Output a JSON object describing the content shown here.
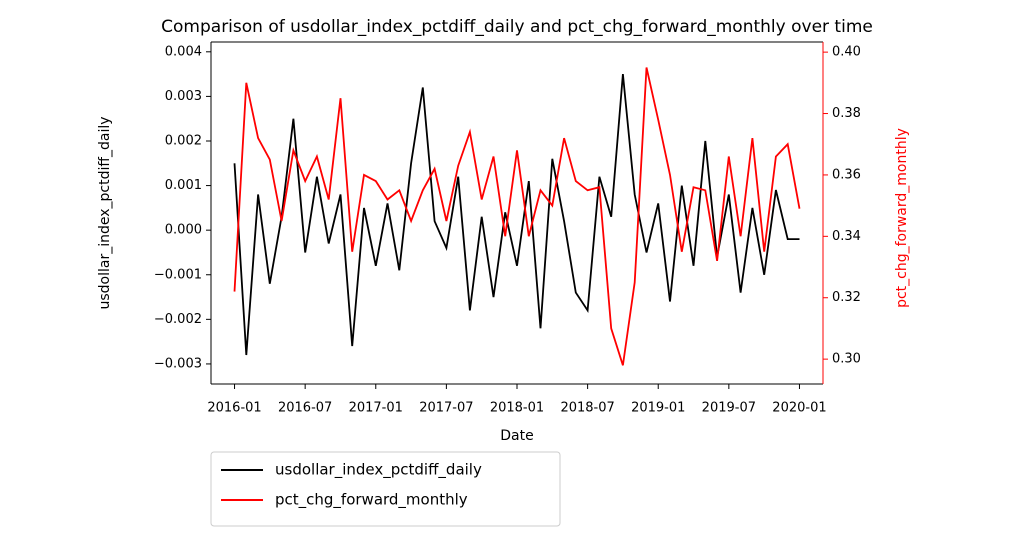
{
  "chart_data": {
    "type": "line",
    "title": "Comparison of usdollar_index_pctdiff_daily and pct_chg_forward_monthly over time",
    "xlabel": "Date",
    "ylabel": "usdollar_index_pctdiff_daily",
    "y2label": "pct_chg_forward_monthly",
    "x": [
      "2016-01",
      "2016-02",
      "2016-03",
      "2016-04",
      "2016-05",
      "2016-06",
      "2016-07",
      "2016-08",
      "2016-09",
      "2016-10",
      "2016-11",
      "2016-12",
      "2017-01",
      "2017-02",
      "2017-03",
      "2017-04",
      "2017-05",
      "2017-06",
      "2017-07",
      "2017-08",
      "2017-09",
      "2017-10",
      "2017-11",
      "2017-12",
      "2018-01",
      "2018-02",
      "2018-03",
      "2018-04",
      "2018-05",
      "2018-06",
      "2018-07",
      "2018-08",
      "2018-09",
      "2018-10",
      "2018-11",
      "2018-12",
      "2019-01",
      "2019-02",
      "2019-03",
      "2019-04",
      "2019-05",
      "2019-06",
      "2019-07",
      "2019-08",
      "2019-09",
      "2019-10",
      "2019-11",
      "2019-12",
      "2020-01"
    ],
    "series": [
      {
        "name": "usdollar_index_pctdiff_daily",
        "color": "#000000",
        "values": [
          0.0015,
          -0.0028,
          0.0008,
          -0.0012,
          0.0003,
          0.0025,
          -0.0005,
          0.0012,
          -0.0003,
          0.0008,
          -0.0026,
          0.0005,
          -0.0008,
          0.0006,
          -0.0009,
          0.0015,
          0.0032,
          0.0002,
          -0.0004,
          0.0012,
          -0.0018,
          0.0003,
          -0.0015,
          0.0004,
          -0.0008,
          0.0011,
          -0.0022,
          0.0016,
          0.0002,
          -0.0014,
          -0.0018,
          0.0012,
          0.0003,
          0.0035,
          0.0008,
          -0.0005,
          0.0006,
          -0.0016,
          0.001,
          -0.0008,
          0.002,
          -0.0006,
          0.0008,
          -0.0014,
          0.0005,
          -0.001,
          0.0009,
          -0.0002,
          -0.0002
        ]
      },
      {
        "name": "pct_chg_forward_monthly",
        "color": "#ff0000",
        "axis": "y2",
        "values": [
          0.322,
          0.39,
          0.372,
          0.365,
          0.345,
          0.368,
          0.358,
          0.366,
          0.352,
          0.385,
          0.335,
          0.36,
          0.358,
          0.352,
          0.355,
          0.345,
          0.355,
          0.362,
          0.345,
          0.363,
          0.374,
          0.352,
          0.366,
          0.34,
          0.368,
          0.34,
          0.355,
          0.35,
          0.372,
          0.358,
          0.355,
          0.356,
          0.31,
          0.298,
          0.325,
          0.395,
          0.378,
          0.36,
          0.335,
          0.356,
          0.355,
          0.332,
          0.366,
          0.34,
          0.372,
          0.335,
          0.366,
          0.37,
          0.349
        ]
      }
    ],
    "xlim": [
      "2015-11",
      "2020-03"
    ],
    "xticks": [
      "2016-01",
      "2016-07",
      "2017-01",
      "2017-07",
      "2018-01",
      "2018-07",
      "2019-01",
      "2019-07",
      "2020-01"
    ],
    "ylim": [
      -0.00345,
      0.00422
    ],
    "yticks": [
      {
        "value": -0.003,
        "label": "−0.003"
      },
      {
        "value": -0.002,
        "label": "−0.002"
      },
      {
        "value": -0.001,
        "label": "−0.001"
      },
      {
        "value": 0,
        "label": "0.000"
      },
      0.001,
      0.002,
      0.003,
      0.004
    ],
    "y2lim": [
      0.2919,
      0.4033
    ],
    "y2ticks": [
      {
        "value": 0.3,
        "label": "0.30"
      },
      0.32,
      0.34,
      0.36,
      0.38,
      {
        "value": 0.4,
        "label": "0.40"
      }
    ],
    "legend": "lower left outside"
  }
}
